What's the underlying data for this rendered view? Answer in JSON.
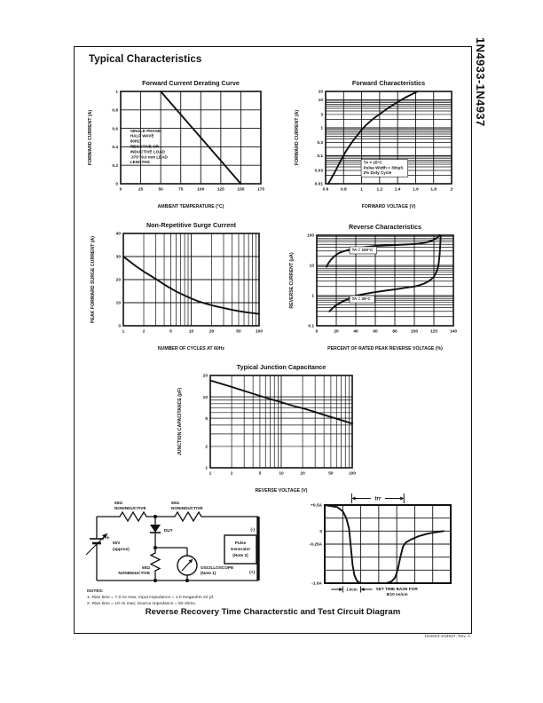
{
  "page": {
    "heading": "Typical Characteristics",
    "side_label": "1N4933-1N4937",
    "footer": "1N4933-1N4937, Rev. A",
    "caption": "Reverse Recovery Time Characterstic and Test Circuit Diagram"
  },
  "chart_data": [
    {
      "id": "forward-current-derating-curve",
      "type": "line",
      "title": "Forward Current Derating Curve",
      "xlabel": "AMBIENT TEMPERATURE (°C)",
      "ylabel": "FORWARD CURRENT (A)",
      "x": {
        "scale": "linear",
        "min": 0,
        "max": 175,
        "grid": [
          0,
          25,
          50,
          75,
          100,
          125,
          150,
          175
        ],
        "labels": [
          [
            0,
            "0"
          ],
          [
            25,
            "25"
          ],
          [
            50,
            "50"
          ],
          [
            75,
            "75"
          ],
          [
            100,
            "100"
          ],
          [
            125,
            "125"
          ],
          [
            150,
            "150"
          ],
          [
            175,
            "175"
          ]
        ]
      },
      "y": {
        "scale": "linear",
        "min": 0,
        "max": 1,
        "grid": [
          0,
          0.2,
          0.4,
          0.6,
          0.8,
          1
        ],
        "labels": [
          [
            0,
            "0"
          ],
          [
            0.2,
            "0.2"
          ],
          [
            0.4,
            "0.4"
          ],
          [
            0.6,
            "0.6"
          ],
          [
            0.8,
            "0.8"
          ],
          [
            1,
            "1"
          ]
        ]
      },
      "series": [
        {
          "name": "derating",
          "points": [
            [
              50,
              1
            ],
            [
              150,
              0
            ]
          ]
        }
      ],
      "annotations": [
        {
          "x": 12,
          "y": 0.56,
          "boxed": false,
          "lines": [
            "SINGLE PHASE",
            "HALF WAVE",
            "60HZ",
            "RESISTIVE OR",
            "INDUCTIVE LOAD",
            ".375\" 9.0 mm LEAD",
            "LENGTHS"
          ]
        }
      ]
    },
    {
      "id": "forward-characteristics",
      "type": "line",
      "title": "Forward Characteristics",
      "xlabel": "FORWARD VOLTAGE (V)",
      "ylabel": "FORWARD CURRENT (A)",
      "x": {
        "scale": "linear",
        "min": 0.6,
        "max": 2,
        "grid": [
          0.6,
          0.8,
          1,
          1.2,
          1.4,
          1.6,
          1.8,
          2
        ],
        "labels": [
          [
            0.6,
            "0.6"
          ],
          [
            0.8,
            "0.8"
          ],
          [
            1,
            "1"
          ],
          [
            1.2,
            "1.2"
          ],
          [
            1.4,
            "1.4"
          ],
          [
            1.6,
            "1.6"
          ],
          [
            1.8,
            "1.8"
          ],
          [
            2,
            "2"
          ]
        ]
      },
      "y": {
        "scale": "log",
        "min": 0.01,
        "max": 20,
        "labels": [
          [
            0.01,
            "0.01"
          ],
          [
            0.03,
            "0.03"
          ],
          [
            0.1,
            "0.1"
          ],
          [
            0.3,
            "0.3"
          ],
          [
            1,
            "1"
          ],
          [
            3,
            "3"
          ],
          [
            10,
            "10"
          ],
          [
            20,
            "20"
          ]
        ]
      },
      "series": [
        {
          "name": "forward current",
          "points": [
            [
              0.63,
              0.01
            ],
            [
              0.66,
              0.015
            ],
            [
              0.7,
              0.025
            ],
            [
              0.74,
              0.045
            ],
            [
              0.78,
              0.08
            ],
            [
              0.82,
              0.135
            ],
            [
              0.86,
              0.215
            ],
            [
              0.9,
              0.33
            ],
            [
              0.95,
              0.53
            ],
            [
              1.0,
              0.85
            ],
            [
              1.05,
              1.25
            ],
            [
              1.1,
              1.75
            ],
            [
              1.15,
              2.35
            ],
            [
              1.2,
              3.1
            ],
            [
              1.3,
              5.2
            ],
            [
              1.4,
              8.3
            ],
            [
              1.5,
              12.8
            ],
            [
              1.56,
              16
            ],
            [
              1.62,
              20
            ]
          ]
        }
      ],
      "annotations": [
        {
          "x": 1.02,
          "y": 0.052,
          "boxed": true,
          "lines": [
            "TA = 25°C",
            "Pulse Width = 300µS",
            "2% Duty Cycle"
          ]
        }
      ]
    },
    {
      "id": "non-repetitive-surge-current",
      "type": "line",
      "title": "Non-Repetitive Surge Current",
      "xlabel": "NUMBER OF CYCLES AT 60Hz",
      "ylabel": "PEAK FORWARD SURGE CURRENT (A)",
      "x": {
        "scale": "log",
        "min": 1,
        "max": 100,
        "labels": [
          [
            1,
            "1"
          ],
          [
            2,
            "2"
          ],
          [
            5,
            "5"
          ],
          [
            10,
            "10"
          ],
          [
            20,
            "20"
          ],
          [
            50,
            "50"
          ],
          [
            100,
            "100"
          ]
        ]
      },
      "y": {
        "scale": "linear",
        "min": 0,
        "max": 40,
        "grid": [
          0,
          10,
          20,
          30,
          40
        ],
        "labels": [
          [
            0,
            "0"
          ],
          [
            10,
            "10"
          ],
          [
            20,
            "20"
          ],
          [
            30,
            "30"
          ],
          [
            40,
            "40"
          ]
        ]
      },
      "series": [
        {
          "name": "surge current",
          "points": [
            [
              1,
              30
            ],
            [
              1.5,
              26
            ],
            [
              2,
              23.5
            ],
            [
              3,
              20.3
            ],
            [
              4,
              17.9
            ],
            [
              5,
              16.2
            ],
            [
              6,
              14.9
            ],
            [
              7,
              13.9
            ],
            [
              8,
              13.1
            ],
            [
              10,
              11.8
            ],
            [
              13,
              10.5
            ],
            [
              16,
              9.7
            ],
            [
              20,
              8.9
            ],
            [
              25,
              8.2
            ],
            [
              30,
              7.7
            ],
            [
              40,
              6.9
            ],
            [
              50,
              6.4
            ],
            [
              60,
              6.0
            ],
            [
              70,
              5.7
            ],
            [
              80,
              5.5
            ],
            [
              90,
              5.3
            ],
            [
              100,
              5.1
            ]
          ]
        }
      ],
      "annotations": []
    },
    {
      "id": "reverse-characteristics",
      "type": "line",
      "title": "Reverse Characteristics",
      "xlabel": "PERCENT OF RATED PEAK REVERSE VOLTAGE (%)",
      "ylabel": "REVERSE CURRENT (µA)",
      "x": {
        "scale": "linear",
        "min": 0,
        "max": 140,
        "grid": [
          0,
          20,
          40,
          60,
          80,
          100,
          120,
          140
        ],
        "labels": [
          [
            0,
            "0"
          ],
          [
            20,
            "20"
          ],
          [
            40,
            "40"
          ],
          [
            60,
            "60"
          ],
          [
            80,
            "80"
          ],
          [
            100,
            "100"
          ],
          [
            120,
            "120"
          ],
          [
            140,
            "140"
          ]
        ]
      },
      "y": {
        "scale": "log",
        "min": 0.1,
        "max": 100,
        "labels": [
          [
            0.1,
            "0.1"
          ],
          [
            1,
            "1"
          ],
          [
            10,
            "10"
          ],
          [
            100,
            "100"
          ]
        ]
      },
      "series": [
        {
          "name": "TA = 100°C",
          "points": [
            [
              10,
              9
            ],
            [
              12,
              12
            ],
            [
              15,
              16
            ],
            [
              18,
              20
            ],
            [
              22,
              25
            ],
            [
              27,
              29
            ],
            [
              33,
              33
            ],
            [
              40,
              37
            ],
            [
              50,
              41
            ],
            [
              60,
              44
            ],
            [
              70,
              46
            ],
            [
              80,
              47
            ],
            [
              90,
              49
            ],
            [
              100,
              51
            ],
            [
              105,
              53
            ],
            [
              110,
              56
            ],
            [
              115,
              61
            ],
            [
              118,
              66
            ],
            [
              121,
              74
            ],
            [
              123,
              82
            ],
            [
              125,
              92
            ],
            [
              126,
              100
            ]
          ]
        },
        {
          "name": "TA = 25°C",
          "points": [
            [
              13,
              0.3
            ],
            [
              16,
              0.38
            ],
            [
              20,
              0.48
            ],
            [
              25,
              0.6
            ],
            [
              30,
              0.72
            ],
            [
              35,
              0.85
            ],
            [
              40,
              1.0
            ],
            [
              50,
              1.15
            ],
            [
              60,
              1.3
            ],
            [
              70,
              1.45
            ],
            [
              80,
              1.6
            ],
            [
              90,
              1.8
            ],
            [
              100,
              2.0
            ],
            [
              105,
              2.2
            ],
            [
              110,
              2.5
            ],
            [
              114,
              2.9
            ],
            [
              117,
              3.4
            ],
            [
              120,
              4.2
            ],
            [
              122,
              5.5
            ],
            [
              124,
              8
            ],
            [
              125,
              12
            ],
            [
              126,
              25
            ],
            [
              126.7,
              60
            ],
            [
              127,
              95
            ]
          ]
        }
      ],
      "annotations": [
        {
          "x": 36,
          "y": 30,
          "boxed": true,
          "lines": [
            "TA = 100°C"
          ]
        },
        {
          "x": 36,
          "y": 0.72,
          "boxed": true,
          "lines": [
            "TA = 25°C"
          ]
        }
      ]
    },
    {
      "id": "typical-junction-capacitance",
      "type": "line",
      "title": "Typical Junction Capacitance",
      "xlabel": "REVERSE VOLTAGE (V)",
      "ylabel": "JUNCTION CAPACITANCE (pF)",
      "x": {
        "scale": "log",
        "min": 1,
        "max": 100,
        "labels": [
          [
            1,
            "1"
          ],
          [
            2,
            "2"
          ],
          [
            5,
            "5"
          ],
          [
            10,
            "10"
          ],
          [
            20,
            "20"
          ],
          [
            50,
            "50"
          ],
          [
            100,
            "100"
          ]
        ]
      },
      "y": {
        "scale": "log",
        "min": 1,
        "max": 20,
        "labels": [
          [
            1,
            "1"
          ],
          [
            2,
            "2"
          ],
          [
            5,
            "5"
          ],
          [
            10,
            "10"
          ],
          [
            20,
            "20"
          ]
        ]
      },
      "series": [
        {
          "name": "junction capacitance",
          "points": [
            [
              1,
              17
            ],
            [
              2,
              13.8
            ],
            [
              3,
              12.1
            ],
            [
              5,
              10.3
            ],
            [
              7,
              9.3
            ],
            [
              10,
              8.4
            ],
            [
              15,
              7.4
            ],
            [
              20,
              6.9
            ],
            [
              30,
              6.1
            ],
            [
              50,
              5.2
            ],
            [
              70,
              4.7
            ],
            [
              100,
              4.2
            ]
          ]
        }
      ],
      "annotations": []
    },
    {
      "id": "reverse-recovery-waveform",
      "type": "line",
      "title": "",
      "xlabel": "",
      "ylabel": "",
      "x": {
        "scale": "linear",
        "min": 0,
        "max": 7,
        "grid": [
          0,
          1,
          2,
          3,
          4,
          5,
          6,
          7
        ],
        "labels": []
      },
      "y": {
        "scale": "linear",
        "min": -1,
        "max": 0.5,
        "grid": [
          -1,
          -0.75,
          -0.5,
          -0.25,
          0,
          0.25,
          0.5
        ],
        "labels": [
          [
            0.5,
            "+0.5A"
          ],
          [
            0,
            "0"
          ],
          [
            -0.25,
            "-0.25A"
          ],
          [
            -1,
            "-1.0A"
          ]
        ]
      },
      "series": [
        {
          "name": "recovery current",
          "points": [
            [
              0,
              0.5
            ],
            [
              0.7,
              0.46
            ],
            [
              1.0,
              0.38
            ],
            [
              1.2,
              0.25
            ],
            [
              1.35,
              0.05
            ],
            [
              1.45,
              -0.3
            ],
            [
              1.55,
              -0.65
            ],
            [
              1.65,
              -0.85
            ],
            [
              1.8,
              -0.96
            ],
            [
              2.0,
              -1.0
            ],
            [
              3.4,
              -1.0
            ],
            [
              3.7,
              -0.97
            ],
            [
              3.9,
              -0.9
            ],
            [
              4.05,
              -0.75
            ],
            [
              4.2,
              -0.5
            ],
            [
              4.35,
              -0.3
            ],
            [
              4.5,
              -0.22
            ],
            [
              4.8,
              -0.16
            ],
            [
              5.2,
              -0.1
            ],
            [
              5.7,
              -0.05
            ],
            [
              6.2,
              -0.02
            ],
            [
              6.6,
              0
            ]
          ]
        }
      ],
      "annotations": [],
      "markers": {
        "trr": {
          "x1": 1.5,
          "x2": 4.4,
          "label": "trr"
        },
        "timebase": {
          "x1": 1,
          "x2": 2,
          "label": "1.0cm",
          "note_l1": "SET TIME BASE FOR",
          "note_l2": "5/10 ns/cm"
        }
      }
    }
  ],
  "circuit": {
    "r_top_left": {
      "l1": "50Ω",
      "l2": "NONINDUCTIVE"
    },
    "r_top_right": {
      "l1": "50Ω",
      "l2": "NONINDUCTIVE"
    },
    "r_bottom": {
      "l1": "50Ω",
      "l2": "NONINDUCTIVE"
    },
    "dut_label": "DUT",
    "source": {
      "plus": "+",
      "l1": "50V",
      "l2": "(approx)"
    },
    "oscilloscope": {
      "l1": "OSCILLOSCOPE",
      "l2": "(Note 1)"
    },
    "pulse_generator": {
      "l1": "Pulse",
      "l2": "Generator",
      "l3": "(Note 2)",
      "neg": "(-)",
      "pos": "(+)"
    },
    "notes_title": "NOTES:",
    "notes": [
      "1. Rise time = 7.0 ns max; Input impedance = 1.0 megaohm 22 pf.",
      "2. Rise time = 10 ns max; Source impedance = 50 ohms."
    ]
  },
  "colors": {
    "ink": "#111111",
    "paper": "#ffffff"
  }
}
